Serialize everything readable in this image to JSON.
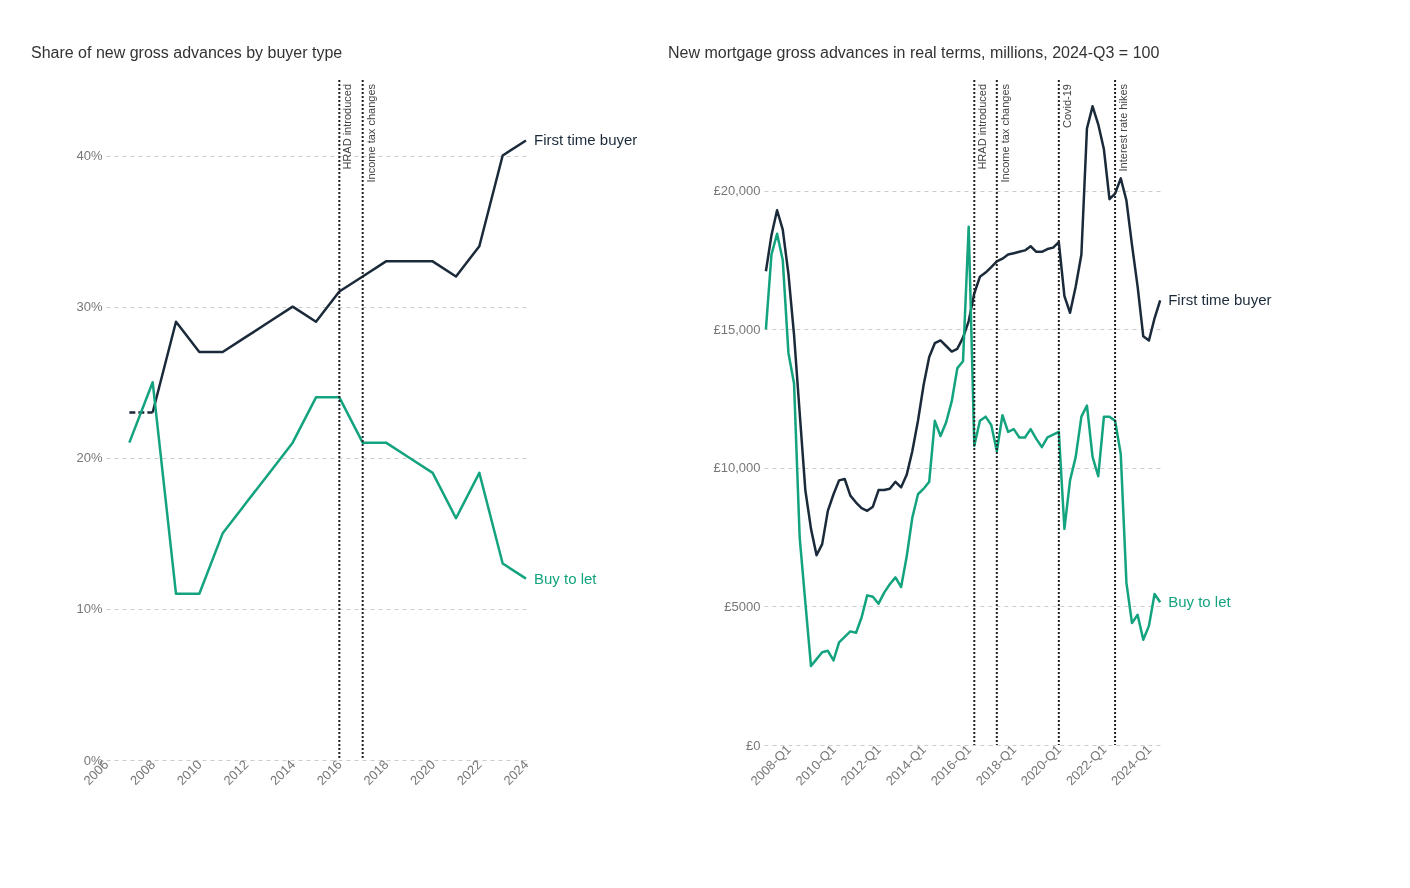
{
  "chart_data": [
    {
      "type": "line",
      "title": "Share of new gross advances by buyer type",
      "xlim": [
        2006,
        2024
      ],
      "xticks": [
        2006,
        2008,
        2010,
        2012,
        2014,
        2016,
        2018,
        2020,
        2022,
        2024
      ],
      "ylim": [
        0,
        45
      ],
      "yticks": [
        {
          "value": 0,
          "label": "0%"
        },
        {
          "value": 10,
          "label": "10%"
        },
        {
          "value": 20,
          "label": "20%"
        },
        {
          "value": 30,
          "label": "30%"
        },
        {
          "value": 40,
          "label": "40%"
        }
      ],
      "grid": "y",
      "legend": false,
      "series": [
        {
          "color": "#1b2a3a",
          "line_style": "dashed",
          "x": [
            2007,
            2008
          ],
          "values": [
            23,
            23
          ]
        },
        {
          "name": "First time buyer",
          "color": "#1b2a3a",
          "line_style": "solid",
          "x": [
            2008,
            2009,
            2010,
            2011,
            2012,
            2013,
            2014,
            2015,
            2016,
            2017,
            2018,
            2019,
            2020,
            2021,
            2022,
            2023,
            2024
          ],
          "values": [
            23,
            29,
            27,
            27,
            28,
            29,
            30,
            29,
            31,
            32,
            33,
            33,
            33,
            32,
            34,
            40,
            41
          ]
        },
        {
          "name": "Buy to let",
          "color": "#14a37f",
          "line_style": "solid",
          "x": [
            2007,
            2008,
            2009,
            2010,
            2011,
            2012,
            2013,
            2014,
            2015,
            2016,
            2017,
            2018,
            2019,
            2020,
            2021,
            2022,
            2023,
            2024
          ],
          "values": [
            21,
            25,
            11,
            11,
            15,
            17,
            19,
            21,
            24,
            24,
            21,
            21,
            20,
            19,
            16,
            19,
            13,
            12
          ]
        }
      ],
      "ref_lines": [
        {
          "axis": "x",
          "value": 2016,
          "label": "HRAD introduced",
          "color": "#222222",
          "line_style": "dotted"
        },
        {
          "axis": "x",
          "value": 2017,
          "label": "Income tax changes",
          "color": "#222222",
          "line_style": "dotted"
        }
      ]
    },
    {
      "type": "line",
      "title": "New mortgage gross advances in real terms, millions, 2024-Q3 = 100",
      "x": [
        "2007-01",
        "2007-04",
        "2007-07",
        "2007-10",
        "2008-01",
        "2008-04",
        "2008-07",
        "2008-10",
        "2009-01",
        "2009-04",
        "2009-07",
        "2009-10",
        "2010-01",
        "2010-04",
        "2010-07",
        "2010-10",
        "2011-01",
        "2011-04",
        "2011-07",
        "2011-10",
        "2012-01",
        "2012-04",
        "2012-07",
        "2012-10",
        "2013-01",
        "2013-04",
        "2013-07",
        "2013-10",
        "2014-01",
        "2014-04",
        "2014-07",
        "2014-10",
        "2015-01",
        "2015-04",
        "2015-07",
        "2015-10",
        "2016-01",
        "2016-04",
        "2016-07",
        "2016-10",
        "2017-01",
        "2017-04",
        "2017-07",
        "2017-10",
        "2018-01",
        "2018-04",
        "2018-07",
        "2018-10",
        "2019-01",
        "2019-04",
        "2019-07",
        "2019-10",
        "2020-01",
        "2020-04",
        "2020-07",
        "2020-10",
        "2021-01",
        "2021-04",
        "2021-07",
        "2021-10",
        "2022-01",
        "2022-04",
        "2022-07",
        "2022-10",
        "2023-01",
        "2023-04",
        "2023-07",
        "2023-10",
        "2024-01",
        "2024-04",
        "2024-07"
      ],
      "xlim": [
        "2006-12",
        "2024-09"
      ],
      "xticks": [
        {
          "value": "2008-01",
          "label": "2008-Q1"
        },
        {
          "value": "2010-01",
          "label": "2010-Q1"
        },
        {
          "value": "2012-01",
          "label": "2012-Q1"
        },
        {
          "value": "2014-01",
          "label": "2014-Q1"
        },
        {
          "value": "2016-01",
          "label": "2016-Q1"
        },
        {
          "value": "2018-01",
          "label": "2018-Q1"
        },
        {
          "value": "2020-01",
          "label": "2020-Q1"
        },
        {
          "value": "2022-01",
          "label": "2022-Q1"
        },
        {
          "value": "2024-01",
          "label": "2024-Q1"
        }
      ],
      "ylim": [
        0,
        24000
      ],
      "yticks": [
        {
          "value": 0,
          "label": "£0"
        },
        {
          "value": 5000,
          "label": "£5000"
        },
        {
          "value": 10000,
          "label": "£10,000"
        },
        {
          "value": 15000,
          "label": "£15,000"
        },
        {
          "value": 20000,
          "label": "£20,000"
        }
      ],
      "grid": "y",
      "legend": false,
      "series": [
        {
          "name": "First time buyer",
          "color": "#1b2a3a",
          "line_style": "solid",
          "values": [
            17100,
            18400,
            19300,
            18600,
            17000,
            14800,
            12000,
            9200,
            7800,
            6850,
            7250,
            8450,
            9050,
            9550,
            9600,
            9000,
            8750,
            8550,
            8450,
            8600,
            9200,
            9200,
            9250,
            9500,
            9300,
            9750,
            10600,
            11700,
            13000,
            14000,
            14500,
            14600,
            14400,
            14200,
            14300,
            14700,
            15300,
            16300,
            16900,
            17050,
            17250,
            17450,
            17550,
            17700,
            17750,
            17800,
            17850,
            18000,
            17800,
            17800,
            17900,
            17950,
            18150,
            16200,
            15600,
            16550,
            17700,
            22250,
            23050,
            22400,
            21500,
            19700,
            19900,
            20450,
            19650,
            18050,
            16550,
            14750,
            14600,
            15400,
            16050
          ]
        },
        {
          "name": "Buy to let",
          "color": "#14a37f",
          "line_style": "solid",
          "values": [
            15000,
            17700,
            18450,
            17500,
            14150,
            13050,
            7500,
            5150,
            2850,
            3100,
            3350,
            3400,
            3050,
            3700,
            3900,
            4100,
            4050,
            4600,
            5400,
            5350,
            5100,
            5500,
            5800,
            6050,
            5700,
            6800,
            8200,
            9050,
            9250,
            9500,
            11700,
            11150,
            11650,
            12400,
            13600,
            13850,
            18700,
            10800,
            11700,
            11850,
            11550,
            10600,
            11900,
            11300,
            11400,
            11100,
            11100,
            11400,
            11050,
            10750,
            11100,
            11200,
            11300,
            7800,
            9550,
            10400,
            11850,
            12250,
            10400,
            9700,
            11850,
            11850,
            11700,
            10500,
            5850,
            4400,
            4700,
            3800,
            4300,
            5450,
            5150
          ]
        }
      ],
      "ref_lines": [
        {
          "axis": "x",
          "value": "2016-04",
          "label": "HRAD introduced",
          "color": "#222222",
          "line_style": "dotted"
        },
        {
          "axis": "x",
          "value": "2017-04",
          "label": "Income tax changes",
          "color": "#222222",
          "line_style": "dotted"
        },
        {
          "axis": "x",
          "value": "2020-01",
          "label": "Covid-19",
          "color": "#222222",
          "line_style": "dotted"
        },
        {
          "axis": "x",
          "value": "2022-07",
          "label": "Interest rate hikes",
          "color": "#222222",
          "line_style": "dotted"
        }
      ]
    }
  ]
}
